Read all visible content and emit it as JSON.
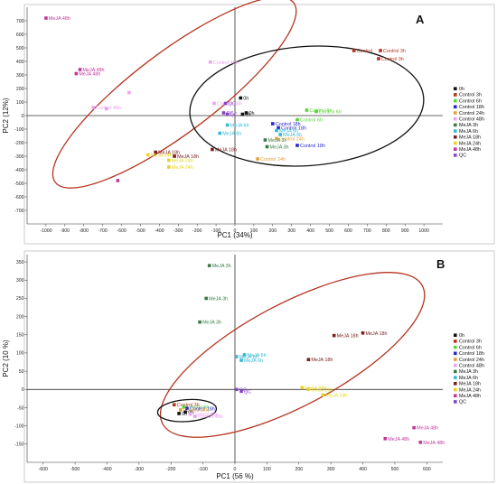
{
  "chart_data": [
    {
      "type": "scatter",
      "panel_letter": "A",
      "xlabel": "PC1 (34%)",
      "ylabel": "PC2 (12%)",
      "xlim": [
        -1100,
        1100
      ],
      "ylim": [
        -800,
        800
      ],
      "xticks": [
        -1000,
        -900,
        -800,
        -700,
        -600,
        -500,
        -400,
        -300,
        -200,
        -100,
        0,
        100,
        200,
        300,
        400,
        500,
        600,
        700,
        800,
        900,
        1000
      ],
      "yticks": [
        -700,
        -600,
        -500,
        -400,
        -300,
        -200,
        -100,
        0,
        100,
        200,
        300,
        400,
        500,
        600,
        700
      ],
      "legend_position": "right",
      "grid": false,
      "points": [
        {
          "x": -1000,
          "y": 720,
          "label": "MeJA 48h",
          "series": "MeJA 48h"
        },
        {
          "x": -820,
          "y": 340,
          "label": "MeJA 48h",
          "series": "MeJA 48h"
        },
        {
          "x": -840,
          "y": 310,
          "label": "MeJA 48h",
          "series": "MeJA 48h"
        },
        {
          "x": -130,
          "y": 395,
          "label": "Control 48h",
          "series": "Control 48h"
        },
        {
          "x": -110,
          "y": 90,
          "label": "Control 48h",
          "series": "Control 48h"
        },
        {
          "x": -750,
          "y": 60,
          "label": "Control 48h",
          "series": "Control 48h"
        },
        {
          "x": -680,
          "y": 50,
          "label": "",
          "series": "Control 48h"
        },
        {
          "x": -420,
          "y": -270,
          "label": "MeJA 18h",
          "series": "MeJA 18h"
        },
        {
          "x": -320,
          "y": -300,
          "label": "MeJA 18h",
          "series": "MeJA 18h"
        },
        {
          "x": -460,
          "y": -290,
          "label": "MeJA 24h",
          "series": "MeJA 24h"
        },
        {
          "x": -350,
          "y": -330,
          "label": "MeJA 24h",
          "series": "MeJA 24h"
        },
        {
          "x": -350,
          "y": -380,
          "label": "MeJA 24h",
          "series": "MeJA 24h"
        },
        {
          "x": -120,
          "y": -250,
          "label": "MeJA 18h",
          "series": "MeJA 18h"
        },
        {
          "x": -50,
          "y": 90,
          "label": "QC",
          "series": "QC"
        },
        {
          "x": -60,
          "y": 20,
          "label": "QC",
          "series": "QC"
        },
        {
          "x": -40,
          "y": 10,
          "label": "QC",
          "series": "QC"
        },
        {
          "x": 30,
          "y": 130,
          "label": "0h",
          "series": "0h"
        },
        {
          "x": 60,
          "y": 20,
          "label": "0h",
          "series": "0h"
        },
        {
          "x": 40,
          "y": 10,
          "label": "0h",
          "series": "0h"
        },
        {
          "x": -40,
          "y": -70,
          "label": "MeJA 6h",
          "series": "MeJA 6h"
        },
        {
          "x": -80,
          "y": -130,
          "label": "MeJA 6h",
          "series": "MeJA 6h"
        },
        {
          "x": 200,
          "y": -60,
          "label": "Control 18h",
          "series": "Control 18h"
        },
        {
          "x": 230,
          "y": -90,
          "label": "Control 18h",
          "series": "Control 18h"
        },
        {
          "x": 330,
          "y": -220,
          "label": "Control 18h",
          "series": "Control 18h"
        },
        {
          "x": 220,
          "y": -110,
          "label": "MeJA 6h",
          "series": "MeJA 6h"
        },
        {
          "x": 240,
          "y": -140,
          "label": "MeJA 6h",
          "series": "MeJA 6h"
        },
        {
          "x": 160,
          "y": -180,
          "label": "MeJA 3h",
          "series": "MeJA 3h"
        },
        {
          "x": 170,
          "y": -230,
          "label": "MeJA 3h",
          "series": "MeJA 3h"
        },
        {
          "x": 220,
          "y": -170,
          "label": "Control 24h",
          "series": "Control 24h"
        },
        {
          "x": 120,
          "y": -320,
          "label": "Control 24h",
          "series": "Control 24h"
        },
        {
          "x": 380,
          "y": 40,
          "label": "Control 6h",
          "series": "Control 6h"
        },
        {
          "x": 430,
          "y": 30,
          "label": "Control 6h",
          "series": "Control 6h"
        },
        {
          "x": 330,
          "y": -30,
          "label": "Control 6h",
          "series": "Control 6h"
        },
        {
          "x": 630,
          "y": 480,
          "label": "Control",
          "series": "Control 3h"
        },
        {
          "x": 770,
          "y": 480,
          "label": "Control 3h",
          "series": "Control 3h"
        },
        {
          "x": 760,
          "y": 420,
          "label": "Control 3h",
          "series": "Control 3h"
        },
        {
          "x": -620,
          "y": -480,
          "label": "",
          "series": "MeJA 48h"
        },
        {
          "x": -560,
          "y": 170,
          "label": "",
          "series": "Control 48h"
        }
      ],
      "ellipses": [
        {
          "cx": -320,
          "cy": 170,
          "rx": 790,
          "ry": 300,
          "angle_deg": -37,
          "color": "#b5341f"
        },
        {
          "cx": 380,
          "cy": 70,
          "rx": 620,
          "ry": 440,
          "angle_deg": -4,
          "color": "#111111"
        }
      ]
    },
    {
      "type": "scatter",
      "panel_letter": "B",
      "xlabel": "PC1 (56 %)",
      "ylabel": "PC2 (10 %)",
      "xlim": [
        -650,
        650
      ],
      "ylim": [
        -200,
        370
      ],
      "xticks": [
        -600,
        -500,
        -400,
        -300,
        -200,
        -100,
        0,
        100,
        200,
        300,
        400,
        500,
        600
      ],
      "yticks": [
        -150,
        -100,
        -50,
        0,
        50,
        100,
        150,
        200,
        250,
        300,
        350
      ],
      "legend_position": "right",
      "grid": false,
      "points": [
        {
          "x": -80,
          "y": 340,
          "label": "MeJA 3h",
          "series": "MeJA 3h"
        },
        {
          "x": -90,
          "y": 250,
          "label": "MeJA 3h",
          "series": "MeJA 3h"
        },
        {
          "x": -110,
          "y": 185,
          "label": "MeJA 3h",
          "series": "MeJA 3h"
        },
        {
          "x": 30,
          "y": 95,
          "label": "MeJA 6h",
          "series": "MeJA 6h"
        },
        {
          "x": 5,
          "y": 90,
          "label": "MeJA 6h",
          "series": "MeJA 6h"
        },
        {
          "x": 20,
          "y": 80,
          "label": "MeJA 6h",
          "series": "MeJA 6h"
        },
        {
          "x": 310,
          "y": 148,
          "label": "MeJA 18h",
          "series": "MeJA 18h"
        },
        {
          "x": 400,
          "y": 155,
          "label": "MeJA 18h",
          "series": "MeJA 18h"
        },
        {
          "x": 230,
          "y": 82,
          "label": "MeJA 18h",
          "series": "MeJA 18h"
        },
        {
          "x": 210,
          "y": 5,
          "label": "MeJA 24h",
          "series": "MeJA 24h"
        },
        {
          "x": 230,
          "y": 0,
          "label": "MeJA 24h",
          "series": "MeJA 24h"
        },
        {
          "x": 275,
          "y": -15,
          "label": "MeJA 24h",
          "series": "MeJA 24h"
        },
        {
          "x": 560,
          "y": -105,
          "label": "MeJA 48h",
          "series": "MeJA 48h"
        },
        {
          "x": 470,
          "y": -135,
          "label": "MeJA 48h",
          "series": "MeJA 48h"
        },
        {
          "x": 580,
          "y": -145,
          "label": "MeJA 48h",
          "series": "MeJA 48h"
        },
        {
          "x": 20,
          "y": -5,
          "label": "QC",
          "series": "QC"
        },
        {
          "x": 5,
          "y": 0,
          "label": "QC",
          "series": "QC"
        },
        {
          "x": -190,
          "y": -42,
          "label": "Control 3h",
          "series": "Control 3h"
        },
        {
          "x": -160,
          "y": -48,
          "label": "Control 6h",
          "series": "Control 6h"
        },
        {
          "x": -150,
          "y": -52,
          "label": "Control 18h",
          "series": "Control 18h"
        },
        {
          "x": -170,
          "y": -56,
          "label": "Control 24h",
          "series": "Control 24h"
        },
        {
          "x": -155,
          "y": -62,
          "label": "0h",
          "series": "0h"
        },
        {
          "x": -140,
          "y": -68,
          "label": "Control 48h",
          "series": "Control 48h"
        },
        {
          "x": -125,
          "y": -74,
          "label": "Control 48h",
          "series": "Control 48h"
        },
        {
          "x": -175,
          "y": -66,
          "label": "0h",
          "series": "0h"
        }
      ],
      "ellipses": [
        {
          "cx": 180,
          "cy": 95,
          "rx": 460,
          "ry": 140,
          "angle_deg": -28,
          "color": "#b5341f"
        },
        {
          "cx": -150,
          "cy": -58,
          "rx": 92,
          "ry": 30,
          "angle_deg": -4,
          "color": "#111111"
        }
      ]
    }
  ],
  "legend": [
    {
      "name": "0h",
      "color": "#111111"
    },
    {
      "name": "Control 3h",
      "color": "#b5341f"
    },
    {
      "name": "Control 6h",
      "color": "#5cd43a"
    },
    {
      "name": "Control 18h",
      "color": "#2727c8"
    },
    {
      "name": "Control 24h",
      "color": "#e2a23a"
    },
    {
      "name": "Control 48h",
      "color": "#e6a5ee"
    },
    {
      "name": "MeJA 3h",
      "color": "#3a7a48"
    },
    {
      "name": "MeJA 6h",
      "color": "#36b8d6"
    },
    {
      "name": "MeJA 18h",
      "color": "#7a2020"
    },
    {
      "name": "MeJA 24h",
      "color": "#e6d41c"
    },
    {
      "name": "MeJA 48h",
      "color": "#c2379b"
    },
    {
      "name": "QC",
      "color": "#8a45c7"
    }
  ]
}
